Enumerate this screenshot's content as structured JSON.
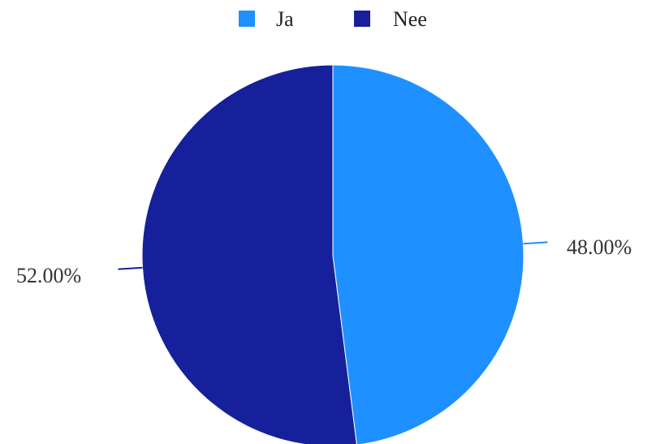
{
  "chart_data": {
    "type": "pie",
    "title": "",
    "legend_position": "top-center",
    "start_angle_deg": 0,
    "direction": "clockwise",
    "slices": [
      {
        "label": "Ja",
        "value": 48.0,
        "display": "48.00%",
        "color": "#1E90FF"
      },
      {
        "label": "Nee",
        "value": 52.0,
        "display": "52.00%",
        "color": "#16209A"
      }
    ]
  }
}
